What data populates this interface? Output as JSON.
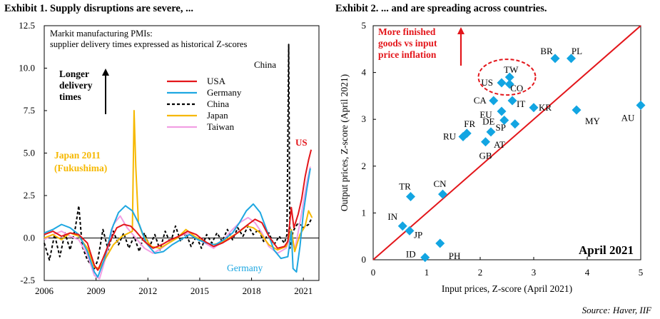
{
  "exhibit1_title": "Exhibit 1. Supply disruptions are severe, ...",
  "exhibit2_title": "Exhibit 2. ... and are spreading across countries.",
  "source": "Source: Haver, IIF",
  "chart_data": [
    {
      "type": "line",
      "title": "Markit manufacturing PMIs: supplier delivery times expressed as historical Z-scores",
      "annotations": [
        "Longer delivery times",
        "China",
        "US",
        "Japan 2011 (Fukushima)",
        "Germany"
      ],
      "x_ticks": [
        "2006",
        "2009",
        "2012",
        "2015",
        "2018",
        "2021"
      ],
      "xlim": [
        2006,
        2021.9
      ],
      "ylim": [
        -2.5,
        12.5
      ],
      "y_ticks": [
        "-2.5",
        "0.0",
        "2.5",
        "5.0",
        "7.5",
        "10.0",
        "12.5"
      ],
      "y_tick_values": [
        -2.5,
        0,
        2.5,
        5,
        7.5,
        10,
        12.5
      ],
      "legend_position": "upper-middle",
      "series": [
        {
          "name": "USA",
          "color": "#e3161b",
          "dash": "solid",
          "points": [
            [
              2006,
              0.2
            ],
            [
              2006.5,
              0.4
            ],
            [
              2007,
              0.1
            ],
            [
              2007.5,
              0.3
            ],
            [
              2008,
              0.2
            ],
            [
              2008.5,
              -0.3
            ],
            [
              2008.9,
              -1.6
            ],
            [
              2009.1,
              -1.9
            ],
            [
              2009.4,
              -1.2
            ],
            [
              2009.8,
              -0.2
            ],
            [
              2010.2,
              0.6
            ],
            [
              2010.6,
              0.8
            ],
            [
              2011,
              0.7
            ],
            [
              2011.3,
              0.4
            ],
            [
              2011.8,
              -0.2
            ],
            [
              2012.3,
              -0.6
            ],
            [
              2012.8,
              -0.4
            ],
            [
              2013.3,
              -0.1
            ],
            [
              2013.8,
              0.1
            ],
            [
              2014.3,
              0.4
            ],
            [
              2014.8,
              0.2
            ],
            [
              2015.3,
              -0.2
            ],
            [
              2015.8,
              -0.5
            ],
            [
              2016.3,
              -0.3
            ],
            [
              2016.8,
              0
            ],
            [
              2017.3,
              0.4
            ],
            [
              2017.8,
              0.8
            ],
            [
              2018.2,
              1.1
            ],
            [
              2018.6,
              0.9
            ],
            [
              2019,
              0.1
            ],
            [
              2019.5,
              -0.6
            ],
            [
              2019.9,
              -0.5
            ],
            [
              2020.1,
              -0.2
            ],
            [
              2020.3,
              1.8
            ],
            [
              2020.45,
              0.6
            ],
            [
              2020.7,
              1.4
            ],
            [
              2020.9,
              2.3
            ],
            [
              2021.1,
              3.6
            ],
            [
              2021.3,
              4.6
            ],
            [
              2021.45,
              5.2
            ]
          ]
        },
        {
          "name": "Germany",
          "color": "#1ea7e1",
          "dash": "solid",
          "points": [
            [
              2006,
              0.3
            ],
            [
              2006.5,
              0.5
            ],
            [
              2007,
              0.8
            ],
            [
              2007.5,
              0.6
            ],
            [
              2008,
              0.2
            ],
            [
              2008.5,
              -0.8
            ],
            [
              2008.9,
              -2
            ],
            [
              2009.1,
              -2.3
            ],
            [
              2009.5,
              -1.2
            ],
            [
              2009.9,
              0.5
            ],
            [
              2010.3,
              1.5
            ],
            [
              2010.7,
              1.9
            ],
            [
              2011.1,
              1.6
            ],
            [
              2011.5,
              0.8
            ],
            [
              2011.9,
              -0.3
            ],
            [
              2012.4,
              -0.9
            ],
            [
              2012.9,
              -0.8
            ],
            [
              2013.4,
              -0.4
            ],
            [
              2013.9,
              -0.1
            ],
            [
              2014.4,
              0.2
            ],
            [
              2014.9,
              -0.1
            ],
            [
              2015.4,
              -0.3
            ],
            [
              2015.9,
              -0.4
            ],
            [
              2016.4,
              -0.1
            ],
            [
              2016.9,
              0.3
            ],
            [
              2017.3,
              0.9
            ],
            [
              2017.7,
              1.6
            ],
            [
              2018.1,
              2
            ],
            [
              2018.5,
              1.5
            ],
            [
              2018.9,
              0.4
            ],
            [
              2019.3,
              -0.7
            ],
            [
              2019.7,
              -1.2
            ],
            [
              2020.1,
              -1.1
            ],
            [
              2020.3,
              0.4
            ],
            [
              2020.4,
              -1.8
            ],
            [
              2020.6,
              -2
            ],
            [
              2020.8,
              -0.5
            ],
            [
              2021,
              1.5
            ],
            [
              2021.2,
              2.9
            ],
            [
              2021.4,
              4.1
            ]
          ]
        },
        {
          "name": "China",
          "color": "#000000",
          "dash": "dashed",
          "points": [
            [
              2006,
              -0.3
            ],
            [
              2006.3,
              -1.3
            ],
            [
              2006.6,
              0.2
            ],
            [
              2006.9,
              -1.1
            ],
            [
              2007.2,
              0.3
            ],
            [
              2007.5,
              -0.7
            ],
            [
              2007.8,
              0.6
            ],
            [
              2008,
              1.9
            ],
            [
              2008.2,
              -0.5
            ],
            [
              2008.5,
              -1.3
            ],
            [
              2008.9,
              -1.8
            ],
            [
              2009.1,
              -1.3
            ],
            [
              2009.4,
              0.5
            ],
            [
              2009.7,
              -0.7
            ],
            [
              2010,
              0.4
            ],
            [
              2010.3,
              -0.4
            ],
            [
              2010.6,
              0.3
            ],
            [
              2010.9,
              -0.6
            ],
            [
              2011.2,
              0.1
            ],
            [
              2011.5,
              -0.8
            ],
            [
              2011.8,
              0.3
            ],
            [
              2012.1,
              -0.5
            ],
            [
              2012.4,
              0.2
            ],
            [
              2012.7,
              -0.7
            ],
            [
              2013,
              0.4
            ],
            [
              2013.3,
              -0.3
            ],
            [
              2013.6,
              0.7
            ],
            [
              2013.9,
              -0.2
            ],
            [
              2014.2,
              0.3
            ],
            [
              2014.5,
              -0.5
            ],
            [
              2014.8,
              0.1
            ],
            [
              2015.1,
              -0.6
            ],
            [
              2015.4,
              0.2
            ],
            [
              2015.7,
              -0.3
            ],
            [
              2016,
              0.3
            ],
            [
              2016.3,
              -0.2
            ],
            [
              2016.6,
              0.5
            ],
            [
              2016.9,
              -0.1
            ],
            [
              2017.2,
              0.6
            ],
            [
              2017.5,
              0.1
            ],
            [
              2017.8,
              0.7
            ],
            [
              2018.1,
              0.2
            ],
            [
              2018.4,
              0.5
            ],
            [
              2018.7,
              -0.2
            ],
            [
              2019,
              0.3
            ],
            [
              2019.3,
              -0.4
            ],
            [
              2019.6,
              0.1
            ],
            [
              2019.9,
              -0.3
            ],
            [
              2020.05,
              0.2
            ],
            [
              2020.15,
              11.4
            ],
            [
              2020.22,
              -0.6
            ],
            [
              2020.4,
              0.4
            ],
            [
              2020.7,
              0.9
            ],
            [
              2021,
              0.6
            ],
            [
              2021.3,
              0.8
            ],
            [
              2021.5,
              1.2
            ]
          ]
        },
        {
          "name": "Japan",
          "color": "#f6b800",
          "dash": "solid",
          "points": [
            [
              2006,
              0
            ],
            [
              2006.5,
              0.2
            ],
            [
              2007,
              -0.1
            ],
            [
              2007.5,
              0.3
            ],
            [
              2008,
              0.1
            ],
            [
              2008.5,
              -0.6
            ],
            [
              2008.9,
              -1.7
            ],
            [
              2009.2,
              -1.8
            ],
            [
              2009.6,
              -1.1
            ],
            [
              2010,
              -0.4
            ],
            [
              2010.5,
              0.1
            ],
            [
              2010.9,
              0.3
            ],
            [
              2011.1,
              0.4
            ],
            [
              2011.2,
              7.5
            ],
            [
              2011.3,
              4.2
            ],
            [
              2011.45,
              0.9
            ],
            [
              2011.7,
              0.2
            ],
            [
              2012.2,
              -0.5
            ],
            [
              2012.7,
              -0.6
            ],
            [
              2013.2,
              -0.3
            ],
            [
              2013.7,
              0
            ],
            [
              2014.2,
              0.5
            ],
            [
              2014.7,
              0.1
            ],
            [
              2015.2,
              -0.2
            ],
            [
              2015.7,
              -0.4
            ],
            [
              2016.2,
              -0.3
            ],
            [
              2016.7,
              0
            ],
            [
              2017.2,
              0.3
            ],
            [
              2017.7,
              0.7
            ],
            [
              2018.1,
              0.6
            ],
            [
              2018.5,
              0.3
            ],
            [
              2019,
              -0.4
            ],
            [
              2019.5,
              -0.7
            ],
            [
              2020,
              -0.5
            ],
            [
              2020.3,
              0.5
            ],
            [
              2020.5,
              -0.8
            ],
            [
              2020.8,
              0.2
            ],
            [
              2021.1,
              0.7
            ],
            [
              2021.3,
              1.6
            ],
            [
              2021.5,
              1.2
            ]
          ]
        },
        {
          "name": "Taiwan",
          "color": "#f19fe3",
          "dash": "solid",
          "points": [
            [
              2006,
              -0.1
            ],
            [
              2006.5,
              0.2
            ],
            [
              2007,
              0.4
            ],
            [
              2007.5,
              0.1
            ],
            [
              2008,
              -0.1
            ],
            [
              2008.5,
              -1
            ],
            [
              2008.9,
              -2.2
            ],
            [
              2009.2,
              -2.4
            ],
            [
              2009.6,
              -1
            ],
            [
              2010,
              0.8
            ],
            [
              2010.4,
              1.3
            ],
            [
              2010.8,
              0.6
            ],
            [
              2011.3,
              0
            ],
            [
              2011.8,
              -0.6
            ],
            [
              2012.3,
              -0.9
            ],
            [
              2012.8,
              -0.6
            ],
            [
              2013.3,
              -0.2
            ],
            [
              2013.8,
              0.1
            ],
            [
              2014.3,
              0.3
            ],
            [
              2014.8,
              0
            ],
            [
              2015.3,
              -0.3
            ],
            [
              2015.8,
              -0.6
            ],
            [
              2016.3,
              -0.2
            ],
            [
              2016.8,
              0.4
            ],
            [
              2017.3,
              0.9
            ],
            [
              2017.8,
              1.2
            ],
            [
              2018.2,
              0.9
            ],
            [
              2018.6,
              0.3
            ],
            [
              2019,
              -0.5
            ],
            [
              2019.5,
              -0.9
            ],
            [
              2020,
              -0.6
            ],
            [
              2020.3,
              0.2
            ],
            [
              2020.5,
              -0.7
            ],
            [
              2020.8,
              0.9
            ],
            [
              2021,
              2.1
            ],
            [
              2021.2,
              3.3
            ],
            [
              2021.4,
              4.2
            ]
          ]
        }
      ]
    },
    {
      "type": "scatter",
      "title": "April 2021",
      "xlabel": "Input prices, Z-score (April 2021)",
      "ylabel": "Output prices, Z-score (April 2021)",
      "xlim": [
        0,
        5
      ],
      "ylim": [
        0,
        5
      ],
      "x_ticks": [
        "0",
        "1",
        "2",
        "3",
        "4",
        "5"
      ],
      "y_ticks": [
        "0",
        "1",
        "2",
        "3",
        "4",
        "5"
      ],
      "reference_line": "45-degree",
      "annotation": "More finished goods vs input price inflation",
      "highlighted": [
        "US",
        "TW",
        "CO"
      ],
      "marker_color": "#12a5e2",
      "line_color": "#e3161b",
      "points": [
        {
          "label": "BR",
          "x": 3.4,
          "y": 4.3
        },
        {
          "label": "PL",
          "x": 3.7,
          "y": 4.3
        },
        {
          "label": "TW",
          "x": 2.55,
          "y": 3.9
        },
        {
          "label": "US",
          "x": 2.4,
          "y": 3.78
        },
        {
          "label": "CO",
          "x": 2.55,
          "y": 3.75
        },
        {
          "label": "CA",
          "x": 2.25,
          "y": 3.4
        },
        {
          "label": "IT",
          "x": 2.6,
          "y": 3.4
        },
        {
          "label": "KR",
          "x": 3.0,
          "y": 3.25
        },
        {
          "label": "MY",
          "x": 3.8,
          "y": 3.2
        },
        {
          "label": "AU",
          "x": 5.0,
          "y": 3.3
        },
        {
          "label": "EU",
          "x": 2.4,
          "y": 3.17
        },
        {
          "label": "DE",
          "x": 2.45,
          "y": 2.98
        },
        {
          "label": "SP",
          "x": 2.65,
          "y": 2.9
        },
        {
          "label": "FR",
          "x": 1.75,
          "y": 2.7
        },
        {
          "label": "AT",
          "x": 2.2,
          "y": 2.73
        },
        {
          "label": "RU",
          "x": 1.68,
          "y": 2.63
        },
        {
          "label": "GB",
          "x": 2.1,
          "y": 2.52
        },
        {
          "label": "TR",
          "x": 0.7,
          "y": 1.35
        },
        {
          "label": "CN",
          "x": 1.3,
          "y": 1.4
        },
        {
          "label": "IN",
          "x": 0.55,
          "y": 0.72
        },
        {
          "label": "JP",
          "x": 0.68,
          "y": 0.62
        },
        {
          "label": "PH",
          "x": 1.25,
          "y": 0.35
        },
        {
          "label": "ID",
          "x": 0.97,
          "y": 0.05
        }
      ]
    }
  ]
}
